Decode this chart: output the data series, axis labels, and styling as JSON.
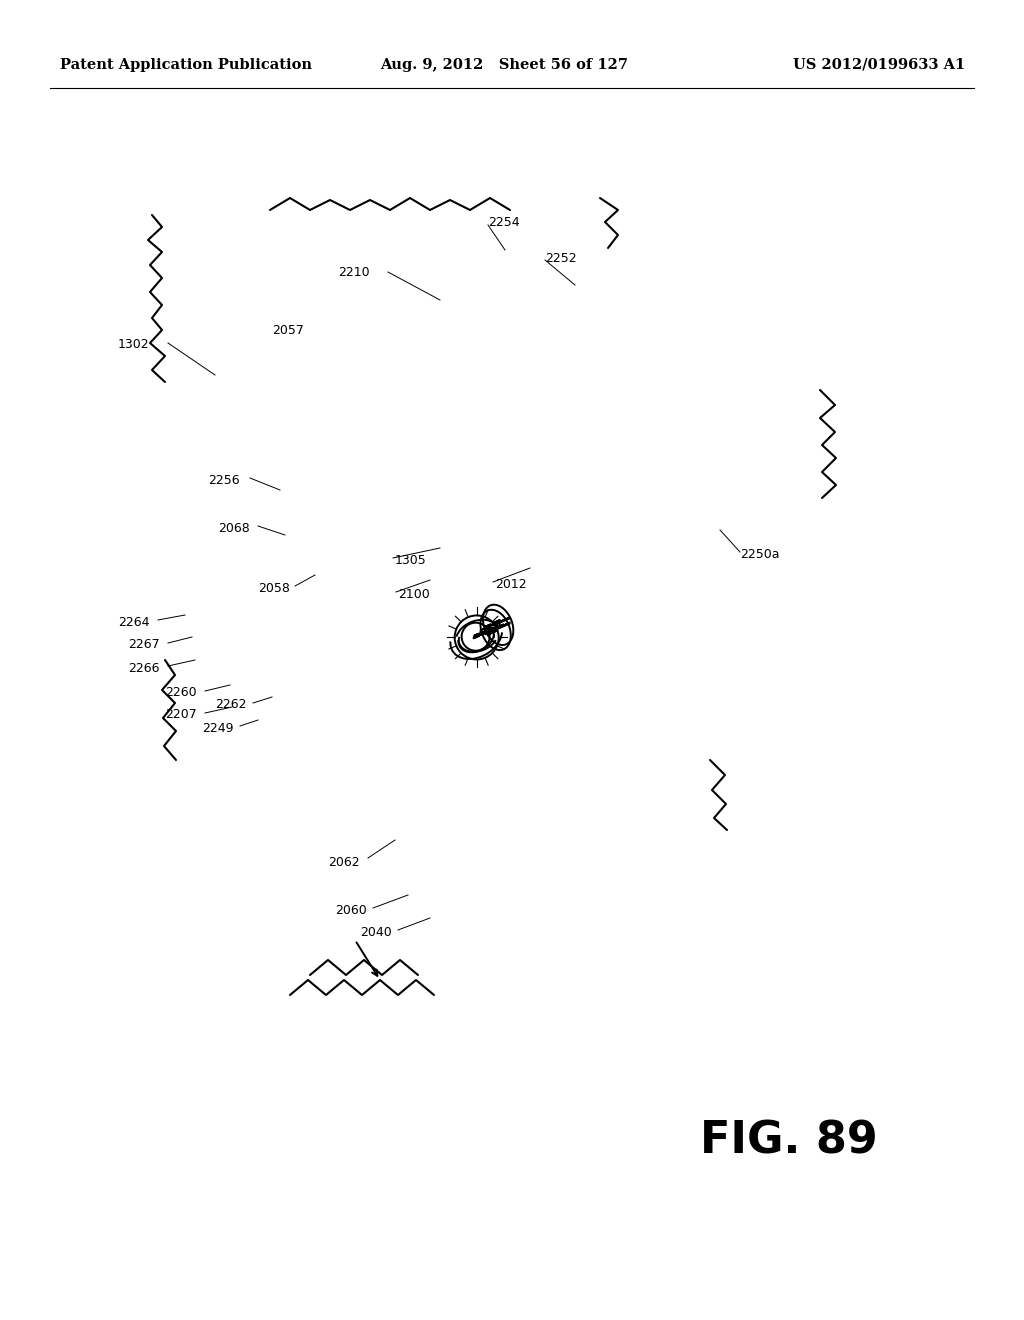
{
  "header_left": "Patent Application Publication",
  "header_mid": "Aug. 9, 2012   Sheet 56 of 127",
  "header_right": "US 2012/0199633 A1",
  "fig_label": "FIG. 89",
  "bg_color": "#ffffff",
  "line_color": "#000000",
  "header_fontsize": 10.5,
  "fig_label_fontsize": 32,
  "label_fontsize": 9,
  "lw_main": 1.4,
  "lw_thin": 0.8
}
